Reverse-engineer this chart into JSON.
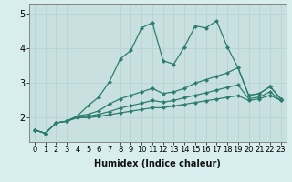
{
  "xlabel": "Humidex (Indice chaleur)",
  "x": [
    0,
    1,
    2,
    3,
    4,
    5,
    6,
    7,
    8,
    9,
    10,
    11,
    12,
    13,
    14,
    15,
    16,
    17,
    18,
    19,
    20,
    21,
    22,
    23
  ],
  "line1": [
    1.65,
    1.55,
    1.85,
    1.9,
    2.05,
    2.35,
    2.6,
    3.05,
    3.7,
    3.95,
    4.6,
    4.75,
    3.65,
    3.55,
    4.05,
    4.65,
    4.6,
    4.8,
    4.05,
    3.45,
    2.65,
    2.7,
    2.9,
    2.55
  ],
  "line2": [
    1.65,
    1.55,
    1.85,
    1.9,
    2.05,
    2.1,
    2.2,
    2.4,
    2.55,
    2.65,
    2.75,
    2.85,
    2.7,
    2.75,
    2.85,
    3.0,
    3.1,
    3.2,
    3.3,
    3.45,
    2.65,
    2.7,
    2.9,
    2.55
  ],
  "line3": [
    1.65,
    1.55,
    1.85,
    1.9,
    2.02,
    2.04,
    2.1,
    2.18,
    2.28,
    2.35,
    2.42,
    2.5,
    2.45,
    2.5,
    2.58,
    2.65,
    2.72,
    2.8,
    2.88,
    2.95,
    2.55,
    2.6,
    2.75,
    2.5
  ],
  "line4": [
    1.65,
    1.55,
    1.85,
    1.9,
    2.0,
    2.0,
    2.04,
    2.09,
    2.14,
    2.19,
    2.24,
    2.29,
    2.29,
    2.34,
    2.39,
    2.44,
    2.49,
    2.54,
    2.59,
    2.64,
    2.5,
    2.55,
    2.65,
    2.5
  ],
  "line_color": "#2d7d6e",
  "bg_color": "#d8eeee",
  "grid_color": "#b8d4d4",
  "axis_bg": "#c8e0e0",
  "ylim": [
    1.3,
    5.3
  ],
  "yticks": [
    2,
    3,
    4,
    5
  ],
  "xlim": [
    -0.5,
    23.5
  ],
  "marker": "D",
  "markersize": 2.5,
  "linewidth": 0.9,
  "xlabel_fontsize": 7,
  "tick_fontsize": 6
}
